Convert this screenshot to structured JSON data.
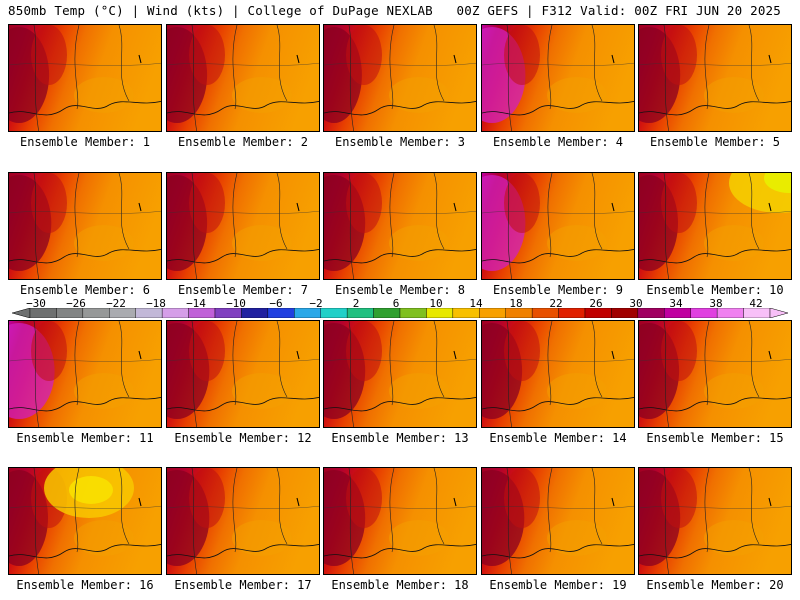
{
  "header": {
    "left": "850mb Temp (°C) | Wind (kts) | College of DuPage NEXLAB",
    "right": "00Z GEFS | F312 Valid: 00Z FRI JUN 20 2025"
  },
  "members": [
    {
      "label": "Ensemble Member: 1",
      "warmth": 0.55,
      "cool_spot": "none"
    },
    {
      "label": "Ensemble Member: 2",
      "warmth": 0.55,
      "cool_spot": "none"
    },
    {
      "label": "Ensemble Member: 3",
      "warmth": 0.45,
      "cool_spot": "none"
    },
    {
      "label": "Ensemble Member: 4",
      "warmth": 0.7,
      "cool_spot": "none"
    },
    {
      "label": "Ensemble Member: 5",
      "warmth": 0.6,
      "cool_spot": "none"
    },
    {
      "label": "Ensemble Member: 6",
      "warmth": 0.65,
      "cool_spot": "none"
    },
    {
      "label": "Ensemble Member: 7",
      "warmth": 0.55,
      "cool_spot": "none"
    },
    {
      "label": "Ensemble Member: 8",
      "warmth": 0.6,
      "cool_spot": "none"
    },
    {
      "label": "Ensemble Member: 9",
      "warmth": 0.7,
      "cool_spot": "none"
    },
    {
      "label": "Ensemble Member: 10",
      "warmth": 0.5,
      "cool_spot": "northeast"
    },
    {
      "label": "Ensemble Member: 11",
      "warmth": 0.8,
      "cool_spot": "none"
    },
    {
      "label": "Ensemble Member: 12",
      "warmth": 0.65,
      "cool_spot": "none"
    },
    {
      "label": "Ensemble Member: 13",
      "warmth": 0.6,
      "cool_spot": "none"
    },
    {
      "label": "Ensemble Member: 14",
      "warmth": 0.55,
      "cool_spot": "none"
    },
    {
      "label": "Ensemble Member: 15",
      "warmth": 0.55,
      "cool_spot": "none"
    },
    {
      "label": "Ensemble Member: 16",
      "warmth": 0.5,
      "cool_spot": "north"
    },
    {
      "label": "Ensemble Member: 17",
      "warmth": 0.65,
      "cool_spot": "none"
    },
    {
      "label": "Ensemble Member: 18",
      "warmth": 0.6,
      "cool_spot": "none"
    },
    {
      "label": "Ensemble Member: 19",
      "warmth": 0.65,
      "cool_spot": "none"
    },
    {
      "label": "Ensemble Member: 20",
      "warmth": 0.6,
      "cool_spot": "none"
    }
  ],
  "colorbar": {
    "labels": [
      "−30",
      "−26",
      "−22",
      "−18",
      "−14",
      "−10",
      "−6",
      "−2",
      "2",
      "6",
      "10",
      "14",
      "18",
      "22",
      "26",
      "30",
      "34",
      "38",
      "42"
    ],
    "colors": [
      "#6e7070",
      "#828484",
      "#969898",
      "#aaabb0",
      "#c2b8d8",
      "#d59ee8",
      "#c060d8",
      "#8040c0",
      "#2020a0",
      "#2040e0",
      "#2aa8e8",
      "#20d0c8",
      "#20c080",
      "#30a030",
      "#80c020",
      "#e8e800",
      "#f8c000",
      "#f8a000",
      "#f08000",
      "#e85000",
      "#e02000",
      "#c00000",
      "#a00000",
      "#a00060",
      "#c000a0",
      "#e040e0",
      "#f080f0",
      "#f8c0f8"
    ]
  }
}
